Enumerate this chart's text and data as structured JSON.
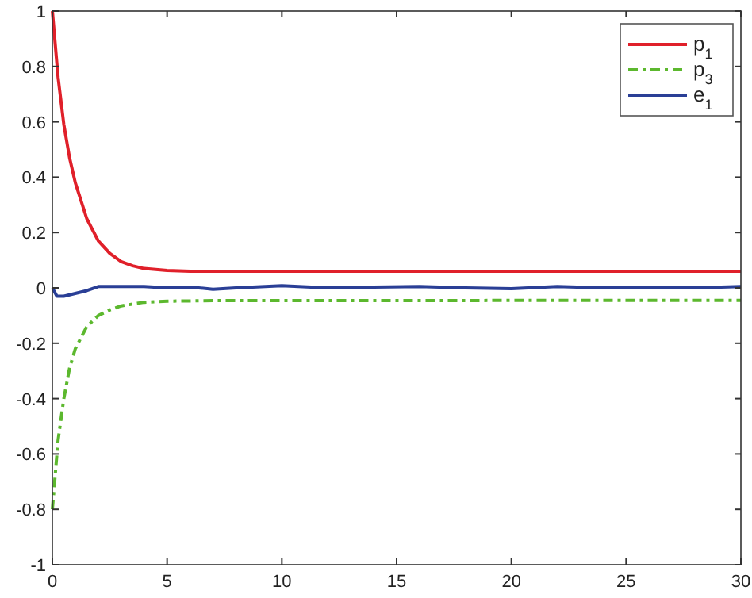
{
  "chart_data": {
    "type": "line",
    "xlim": [
      0,
      30
    ],
    "ylim": [
      -1,
      1
    ],
    "xticks": [
      0,
      5,
      10,
      15,
      20,
      25,
      30
    ],
    "yticks": [
      -1,
      -0.8,
      -0.6,
      -0.4,
      -0.2,
      0,
      0.2,
      0.4,
      0.6,
      0.8,
      1
    ],
    "grid": false,
    "legend": "top right",
    "series": [
      {
        "name": "p$_{1}$",
        "color": "#e0202a",
        "line_style": "solid",
        "x": [
          0,
          0.25,
          0.5,
          0.75,
          1,
          1.5,
          2,
          2.5,
          3,
          3.5,
          4,
          5,
          6,
          8,
          30
        ],
        "values": [
          1,
          0.76,
          0.59,
          0.47,
          0.38,
          0.25,
          0.17,
          0.125,
          0.095,
          0.08,
          0.07,
          0.063,
          0.06,
          0.06,
          0.06
        ]
      },
      {
        "name": "p$_{3}$",
        "color": "#5cb82e",
        "line_style": "dashed",
        "x": [
          0,
          0.25,
          0.5,
          0.75,
          1,
          1.5,
          2,
          2.5,
          3,
          4,
          5,
          7,
          30
        ],
        "values": [
          -0.8,
          -0.55,
          -0.4,
          -0.29,
          -0.22,
          -0.14,
          -0.1,
          -0.08,
          -0.065,
          -0.052,
          -0.048,
          -0.046,
          -0.045
        ]
      },
      {
        "name": "e$_{1}$",
        "color": "#2a3f96",
        "line_style": "solid",
        "x": [
          0,
          0.2,
          0.5,
          1,
          1.5,
          2,
          3,
          4,
          5,
          6,
          7,
          8,
          10,
          12,
          14,
          16,
          18,
          20,
          22,
          24,
          26,
          28,
          30
        ],
        "values": [
          0,
          -0.03,
          -0.03,
          -0.02,
          -0.01,
          0.005,
          0.005,
          0.005,
          0,
          0.003,
          -0.005,
          0,
          0.008,
          0,
          0.003,
          0.005,
          0,
          -0.003,
          0.005,
          0,
          0.003,
          0,
          0.005
        ]
      }
    ]
  }
}
